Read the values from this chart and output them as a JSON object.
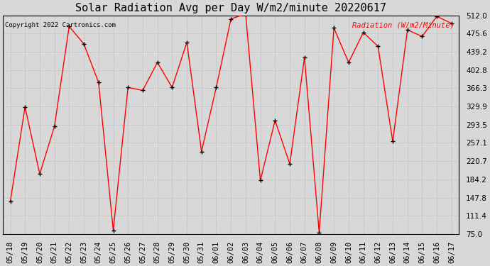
{
  "title": "Solar Radiation Avg per Day W/m2/minute 20220617",
  "copyright": "Copyright 2022 Cartronics.com",
  "legend_label": "Radiation (W/m2/Minute)",
  "dates": [
    "05/18",
    "05/19",
    "05/20",
    "05/21",
    "05/22",
    "05/23",
    "05/24",
    "05/25",
    "05/26",
    "05/27",
    "05/28",
    "05/29",
    "05/30",
    "05/31",
    "06/01",
    "06/02",
    "06/03",
    "06/04",
    "06/05",
    "06/06",
    "06/07",
    "06/08",
    "06/09",
    "06/10",
    "06/11",
    "06/12",
    "06/13",
    "06/14",
    "06/15",
    "06/16",
    "06/17"
  ],
  "values": [
    140,
    329,
    195,
    290,
    490,
    455,
    378,
    82,
    368,
    362,
    418,
    368,
    458,
    240,
    368,
    505,
    515,
    182,
    302,
    215,
    428,
    77,
    487,
    418,
    478,
    450,
    260,
    483,
    470,
    510,
    496
  ],
  "ymin": 75.0,
  "ymax": 512.0,
  "yticks": [
    75.0,
    111.4,
    147.8,
    184.2,
    220.7,
    257.1,
    293.5,
    329.9,
    366.3,
    402.8,
    439.2,
    475.6,
    512.0
  ],
  "line_color": "red",
  "marker_color": "black",
  "bg_color": "#d8d8d8",
  "grid_color": "#bbbbbb",
  "title_fontsize": 11,
  "tick_fontsize": 7.5,
  "legend_color": "red",
  "figwidth": 6.9,
  "figheight": 3.75,
  "dpi": 100
}
